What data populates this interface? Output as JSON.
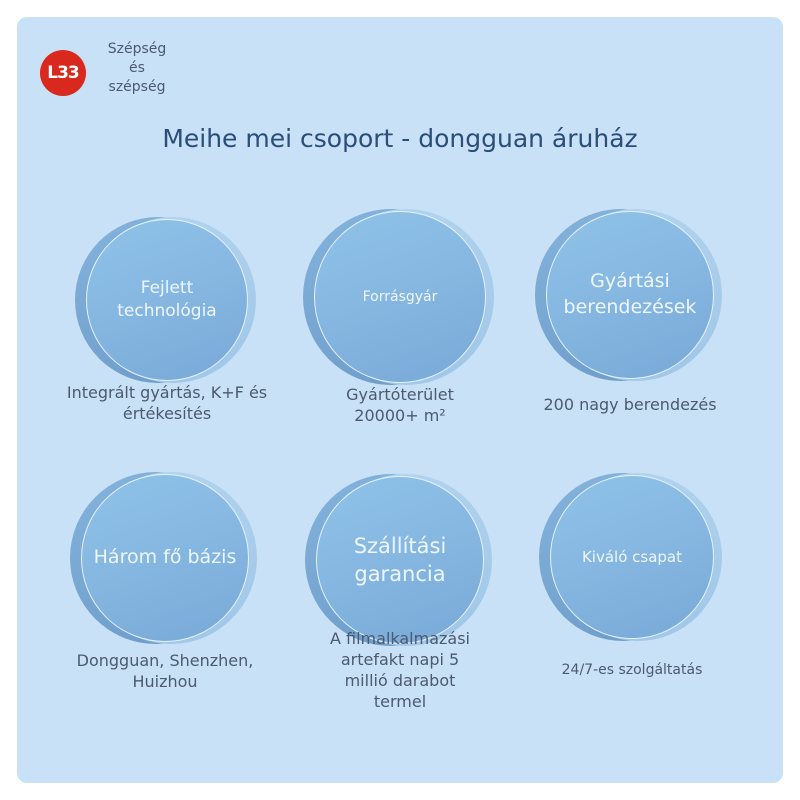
{
  "brand": {
    "logo_text": "L33",
    "name": "Szépség és szépség"
  },
  "title": "Meihe mei csoport - dongguan áruház",
  "colors": {
    "logo": "#d9281e",
    "background": "#c9e1f7",
    "title": "#2a4d7a"
  },
  "items": [
    {
      "label": "Fejlett technológia",
      "caption": "Integrált gyártás, K+F és értékesítés"
    },
    {
      "label": "Forrásgyár",
      "caption": "Gyártóterület 20000+ m²"
    },
    {
      "label": "Gyártási berendezések",
      "caption": "200 nagy berendezés"
    },
    {
      "label": "Három fő bázis",
      "caption": "Dongguan, Shenzhen, Huizhou"
    },
    {
      "label": "Szállítási garancia",
      "caption": "A filmalkalmazási artefakt napi 5 millió darabot termel"
    },
    {
      "label": "Kiváló csapat",
      "caption": "24/7-es szolgáltatás"
    }
  ]
}
